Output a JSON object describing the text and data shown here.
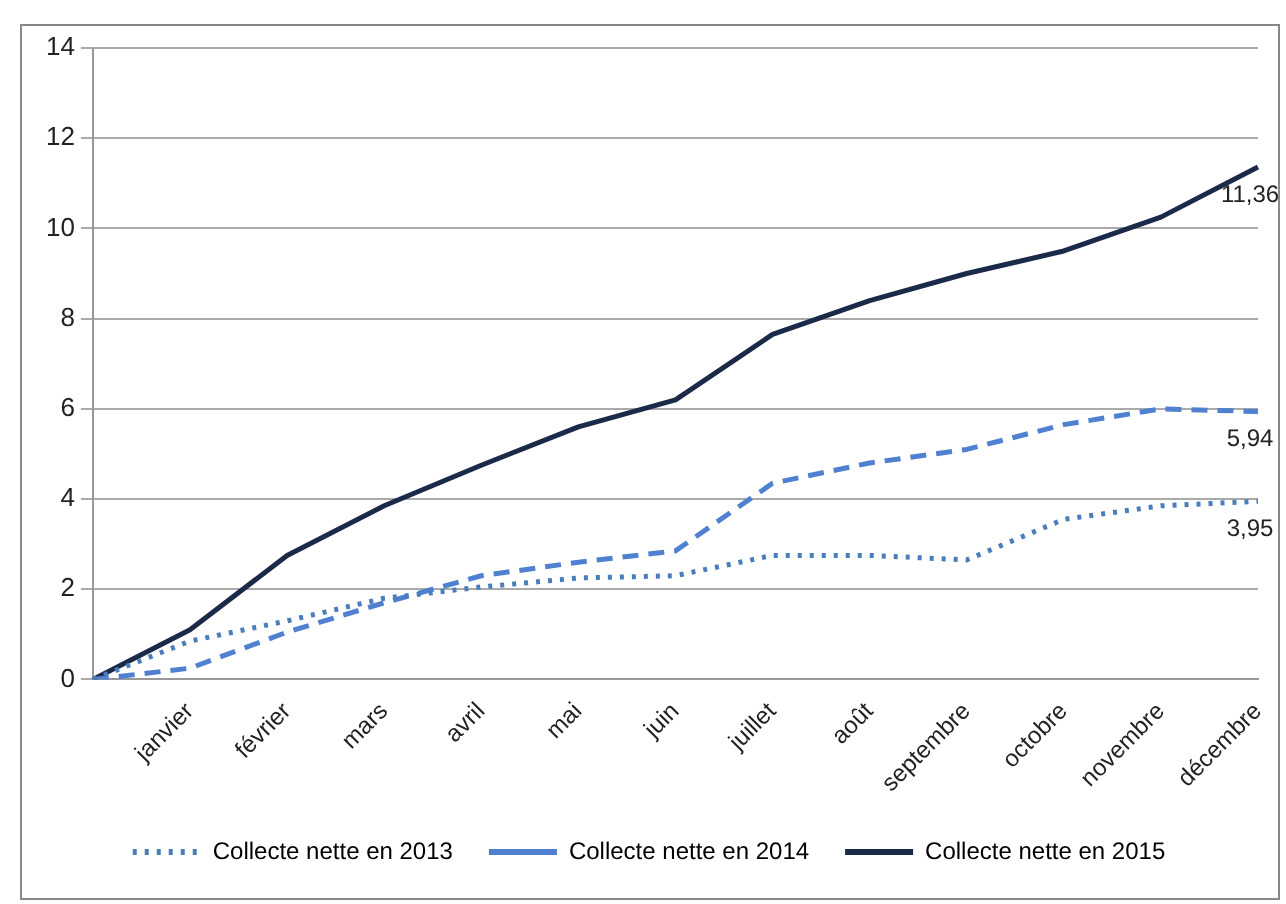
{
  "chart_data": {
    "type": "line",
    "categories": [
      null,
      "janvier",
      "février",
      "mars",
      "avril",
      "mai",
      "juin",
      "juillet",
      "août",
      "septembre",
      "octobre",
      "novembre",
      "décembre"
    ],
    "series": [
      {
        "name": "Collecte nette en 2013",
        "color": "#4a7ebb",
        "line_style": "dotted",
        "values": [
          0,
          0.85,
          1.3,
          1.8,
          2.05,
          2.25,
          2.3,
          2.75,
          2.75,
          2.65,
          3.55,
          3.85,
          3.95
        ],
        "value_labels": [
          null,
          null,
          null,
          null,
          null,
          null,
          null,
          null,
          null,
          null,
          null,
          null,
          "3,95"
        ]
      },
      {
        "name": "Collecte nette en 2014",
        "color": "#4f81d0",
        "line_style": "dashed",
        "values": [
          0,
          0.25,
          1.05,
          1.7,
          2.3,
          2.6,
          2.85,
          4.35,
          4.8,
          5.1,
          5.65,
          6.0,
          5.94
        ],
        "value_labels": [
          null,
          null,
          null,
          null,
          null,
          null,
          null,
          null,
          null,
          null,
          null,
          null,
          "5,94"
        ]
      },
      {
        "name": "Collecte nette en 2015",
        "color": "#1c2a4a",
        "line_style": "solid",
        "values": [
          0,
          1.1,
          2.75,
          3.85,
          4.75,
          5.6,
          6.2,
          7.65,
          8.4,
          9.0,
          9.5,
          10.25,
          11.36
        ],
        "value_labels": [
          null,
          null,
          null,
          null,
          null,
          null,
          null,
          null,
          null,
          null,
          null,
          null,
          "11,36"
        ]
      }
    ],
    "ylim": [
      0,
      14
    ],
    "yticks": [
      0,
      2,
      4,
      6,
      8,
      10,
      12,
      14
    ],
    "grid": "y",
    "legend": "bottom",
    "marker": "none"
  }
}
